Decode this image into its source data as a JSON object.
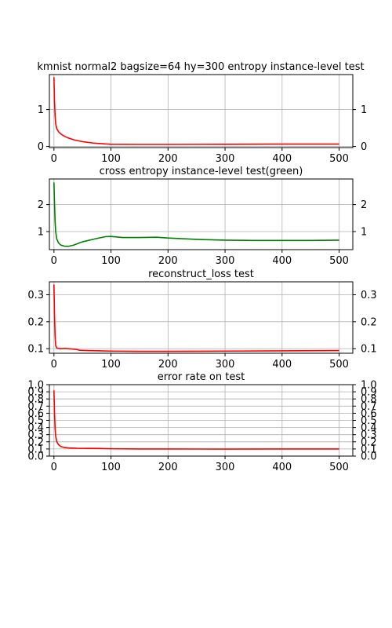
{
  "chart_data": [
    {
      "type": "line",
      "title": "kmnist normal2 bagsize=64 hy=300 entropy instance-level test",
      "xlabel": "",
      "ylabel": "",
      "xlim": [
        -8,
        524
      ],
      "ylim": [
        -0.03,
        1.95
      ],
      "xticks": [
        0,
        100,
        200,
        300,
        400,
        500
      ],
      "yticks": [
        0,
        1
      ],
      "grid": true,
      "right_ticks": true,
      "series": [
        {
          "color": "#ff0000",
          "x": [
            0,
            1,
            2,
            3,
            5,
            8,
            12,
            18,
            25,
            35,
            50,
            70,
            100,
            150,
            200,
            300,
            400,
            500
          ],
          "y": [
            1.88,
            1.2,
            0.85,
            0.62,
            0.48,
            0.4,
            0.34,
            0.28,
            0.23,
            0.18,
            0.13,
            0.09,
            0.06,
            0.055,
            0.055,
            0.06,
            0.065,
            0.065
          ]
        }
      ]
    },
    {
      "type": "line",
      "title": "cross entropy instance-level test(green)",
      "xlabel": "",
      "ylabel": "",
      "xlim": [
        -8,
        524
      ],
      "ylim": [
        0.33,
        2.95
      ],
      "xticks": [
        0,
        100,
        200,
        300,
        400,
        500
      ],
      "yticks": [
        1,
        2
      ],
      "grid": true,
      "right_ticks": true,
      "series": [
        {
          "color": "#008000",
          "x": [
            0,
            1,
            2,
            3,
            5,
            8,
            12,
            18,
            25,
            35,
            50,
            70,
            90,
            100,
            120,
            150,
            180,
            200,
            250,
            300,
            350,
            400,
            450,
            500
          ],
          "y": [
            2.82,
            2.0,
            1.4,
            1.0,
            0.72,
            0.58,
            0.5,
            0.46,
            0.45,
            0.5,
            0.62,
            0.72,
            0.81,
            0.82,
            0.78,
            0.78,
            0.79,
            0.76,
            0.71,
            0.68,
            0.67,
            0.67,
            0.67,
            0.68
          ]
        }
      ]
    },
    {
      "type": "line",
      "title": "reconstruct_loss test",
      "xlabel": "",
      "ylabel": "",
      "xlim": [
        -8,
        524
      ],
      "ylim": [
        0.083,
        0.348
      ],
      "xticks": [
        0,
        100,
        200,
        300,
        400,
        500
      ],
      "yticks": [
        0.1,
        0.2,
        0.3
      ],
      "grid": true,
      "right_ticks": true,
      "series": [
        {
          "color": "#ff0000",
          "x": [
            0,
            1,
            2,
            3,
            5,
            8,
            12,
            20,
            30,
            40,
            45,
            60,
            100,
            150,
            200,
            300,
            400,
            500
          ],
          "y": [
            0.338,
            0.22,
            0.15,
            0.112,
            0.102,
            0.101,
            0.1,
            0.101,
            0.099,
            0.097,
            0.094,
            0.093,
            0.091,
            0.09,
            0.09,
            0.091,
            0.092,
            0.093
          ]
        }
      ]
    },
    {
      "type": "line",
      "title": "error rate on test",
      "xlabel": "",
      "ylabel": "",
      "xlim": [
        -8,
        524
      ],
      "ylim": [
        0.0,
        1.0
      ],
      "xticks": [
        0,
        100,
        200,
        300,
        400,
        500
      ],
      "yticks": [
        0.0,
        0.1,
        0.2,
        0.3,
        0.4,
        0.5,
        0.6,
        0.7,
        0.8,
        0.9,
        1.0
      ],
      "grid": true,
      "right_ticks": true,
      "series": [
        {
          "color": "#ff0000",
          "x": [
            0,
            1,
            2,
            3,
            5,
            8,
            12,
            18,
            25,
            40,
            60,
            80,
            100,
            150,
            200,
            300,
            400,
            500
          ],
          "y": [
            0.92,
            0.6,
            0.4,
            0.28,
            0.2,
            0.16,
            0.135,
            0.12,
            0.115,
            0.11,
            0.108,
            0.106,
            0.103,
            0.1,
            0.1,
            0.098,
            0.1,
            0.1
          ]
        }
      ]
    }
  ]
}
